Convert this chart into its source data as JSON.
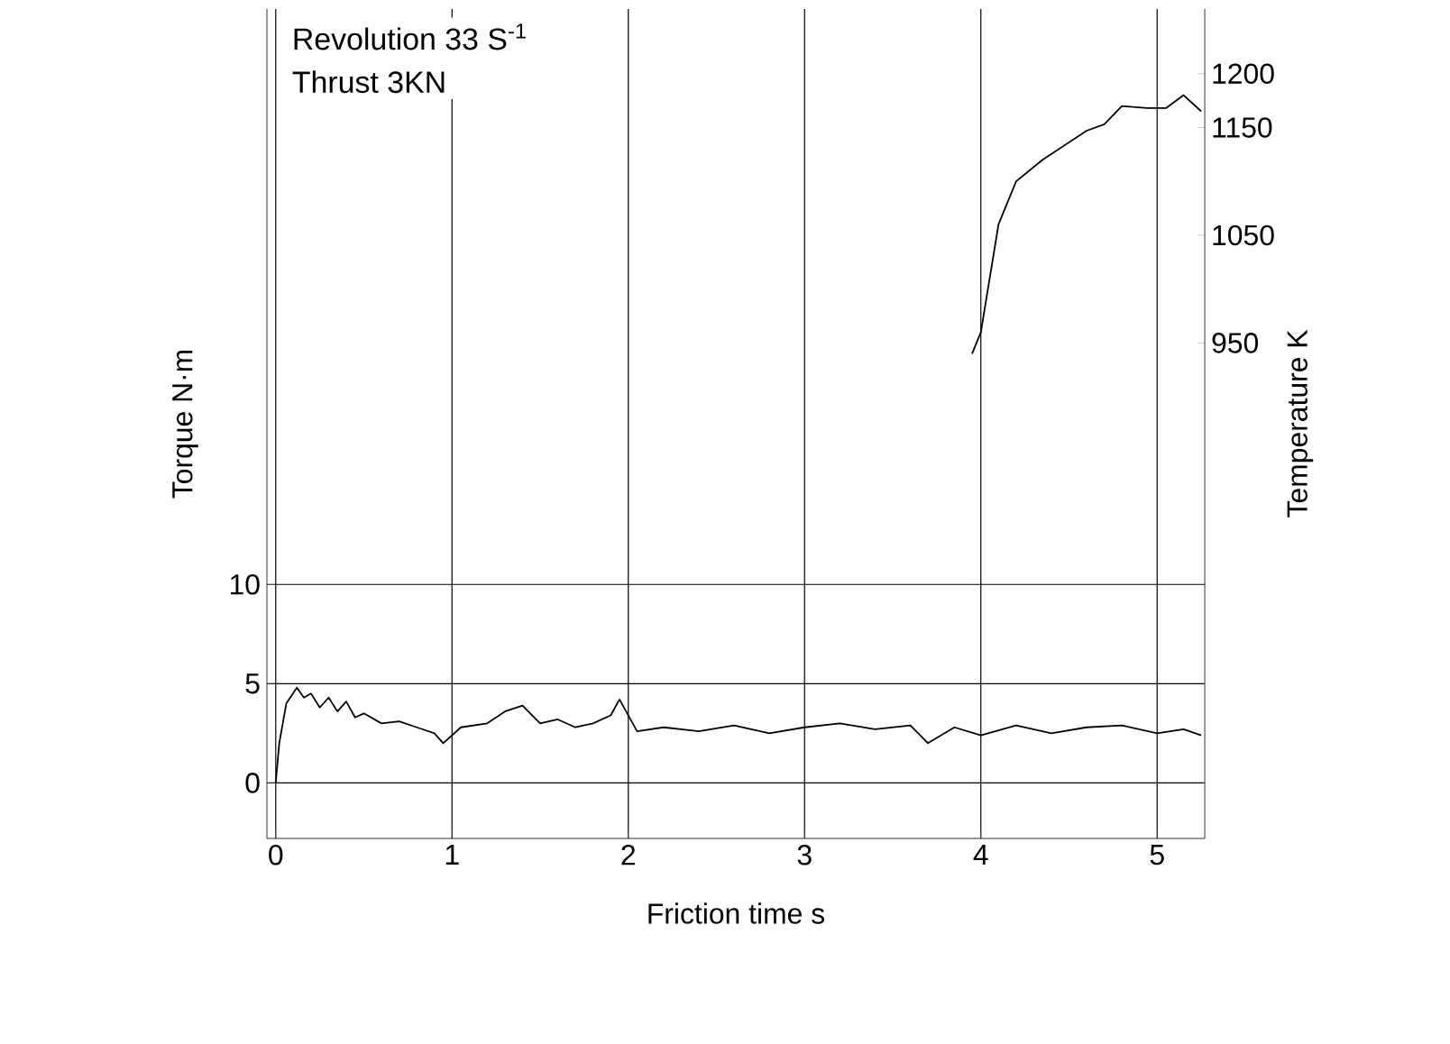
{
  "chart_data": {
    "type": "line",
    "xlabel": "Friction time s",
    "ylabel": "Torque N·m",
    "y2label": "Temperature K",
    "annotations": [
      "Revolution 33 S$^{-1}$",
      "Thrust 3KN"
    ],
    "xlim": [
      -0.05,
      5.27
    ],
    "xticks": [
      0,
      1,
      2,
      3,
      4,
      5
    ],
    "ylim": [
      -2.8,
      39
    ],
    "yticks": [
      0,
      5,
      10
    ],
    "y2lim": [
      490,
      1260
    ],
    "y2ticks": [
      950,
      1050,
      1150,
      1200
    ],
    "grid": true,
    "marker": "none",
    "line_style": "solid",
    "series": [
      {
        "color": "#000000",
        "x": [
          0,
          0.02,
          0.06,
          0.12,
          0.16,
          0.2,
          0.25,
          0.3,
          0.35,
          0.4,
          0.45,
          0.5,
          0.6,
          0.7,
          0.8,
          0.9,
          0.95,
          1.05,
          1.2,
          1.3,
          1.4,
          1.5,
          1.6,
          1.7,
          1.8,
          1.9,
          1.95,
          2.05,
          2.2,
          2.4,
          2.6,
          2.8,
          3.0,
          3.2,
          3.4,
          3.6,
          3.7,
          3.85,
          4.0,
          4.2,
          4.4,
          4.6,
          4.8,
          5.0,
          5.15,
          5.25
        ],
        "values": [
          0,
          2,
          4,
          4.8,
          4.3,
          4.5,
          3.8,
          4.3,
          3.6,
          4.1,
          3.3,
          3.5,
          3.0,
          3.1,
          2.8,
          2.5,
          2.0,
          2.8,
          3.0,
          3.6,
          3.9,
          3.0,
          3.2,
          2.8,
          3.0,
          3.4,
          4.2,
          2.6,
          2.8,
          2.6,
          2.9,
          2.5,
          2.8,
          3.0,
          2.7,
          2.9,
          2.0,
          2.8,
          2.4,
          2.9,
          2.5,
          2.8,
          2.9,
          2.5,
          2.7,
          2.4
        ]
      },
      {
        "color": "#000000",
        "axis": "y2",
        "x": [
          3.95,
          4.0,
          4.1,
          4.2,
          4.35,
          4.6,
          4.7,
          4.8,
          4.95,
          5.05,
          5.15,
          5.25
        ],
        "values": [
          940,
          960,
          1060,
          1100,
          1120,
          1147,
          1153,
          1170,
          1168,
          1168,
          1180,
          1165
        ]
      }
    ]
  }
}
